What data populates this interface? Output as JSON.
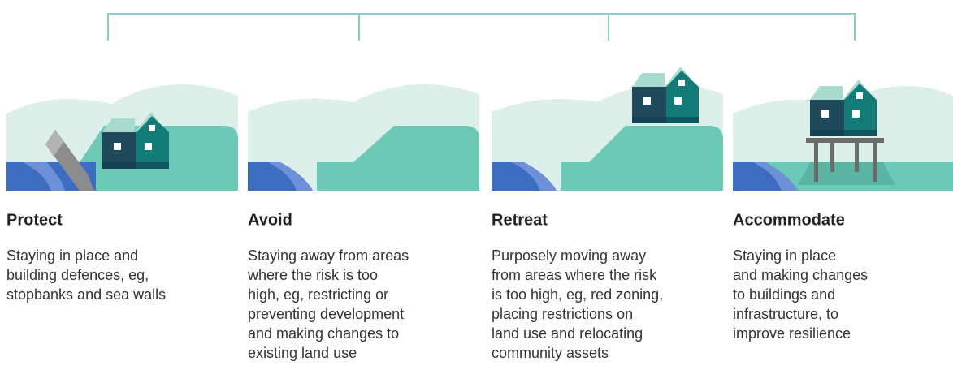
{
  "items": [
    {
      "title": "Protect",
      "lines": [
        "Staying in place and",
        "building defences, eg,",
        "stopbanks and sea walls"
      ]
    },
    {
      "title": "Avoid",
      "lines": [
        "Staying away from areas",
        "where the risk is too",
        "high, eg, restricting or",
        "preventing development",
        "and making changes to",
        "existing land use"
      ]
    },
    {
      "title": "Retreat",
      "lines": [
        "Purposely moving away",
        "from areas where the risk",
        "is too high, eg, red zoning,",
        "placing restrictions on",
        "land use and relocating",
        "community assets"
      ]
    },
    {
      "title": "Accommodate",
      "lines": [
        "Staying in place",
        "and making changes",
        "to buildings and",
        "infrastructure, to",
        "improve resilience"
      ]
    }
  ]
}
